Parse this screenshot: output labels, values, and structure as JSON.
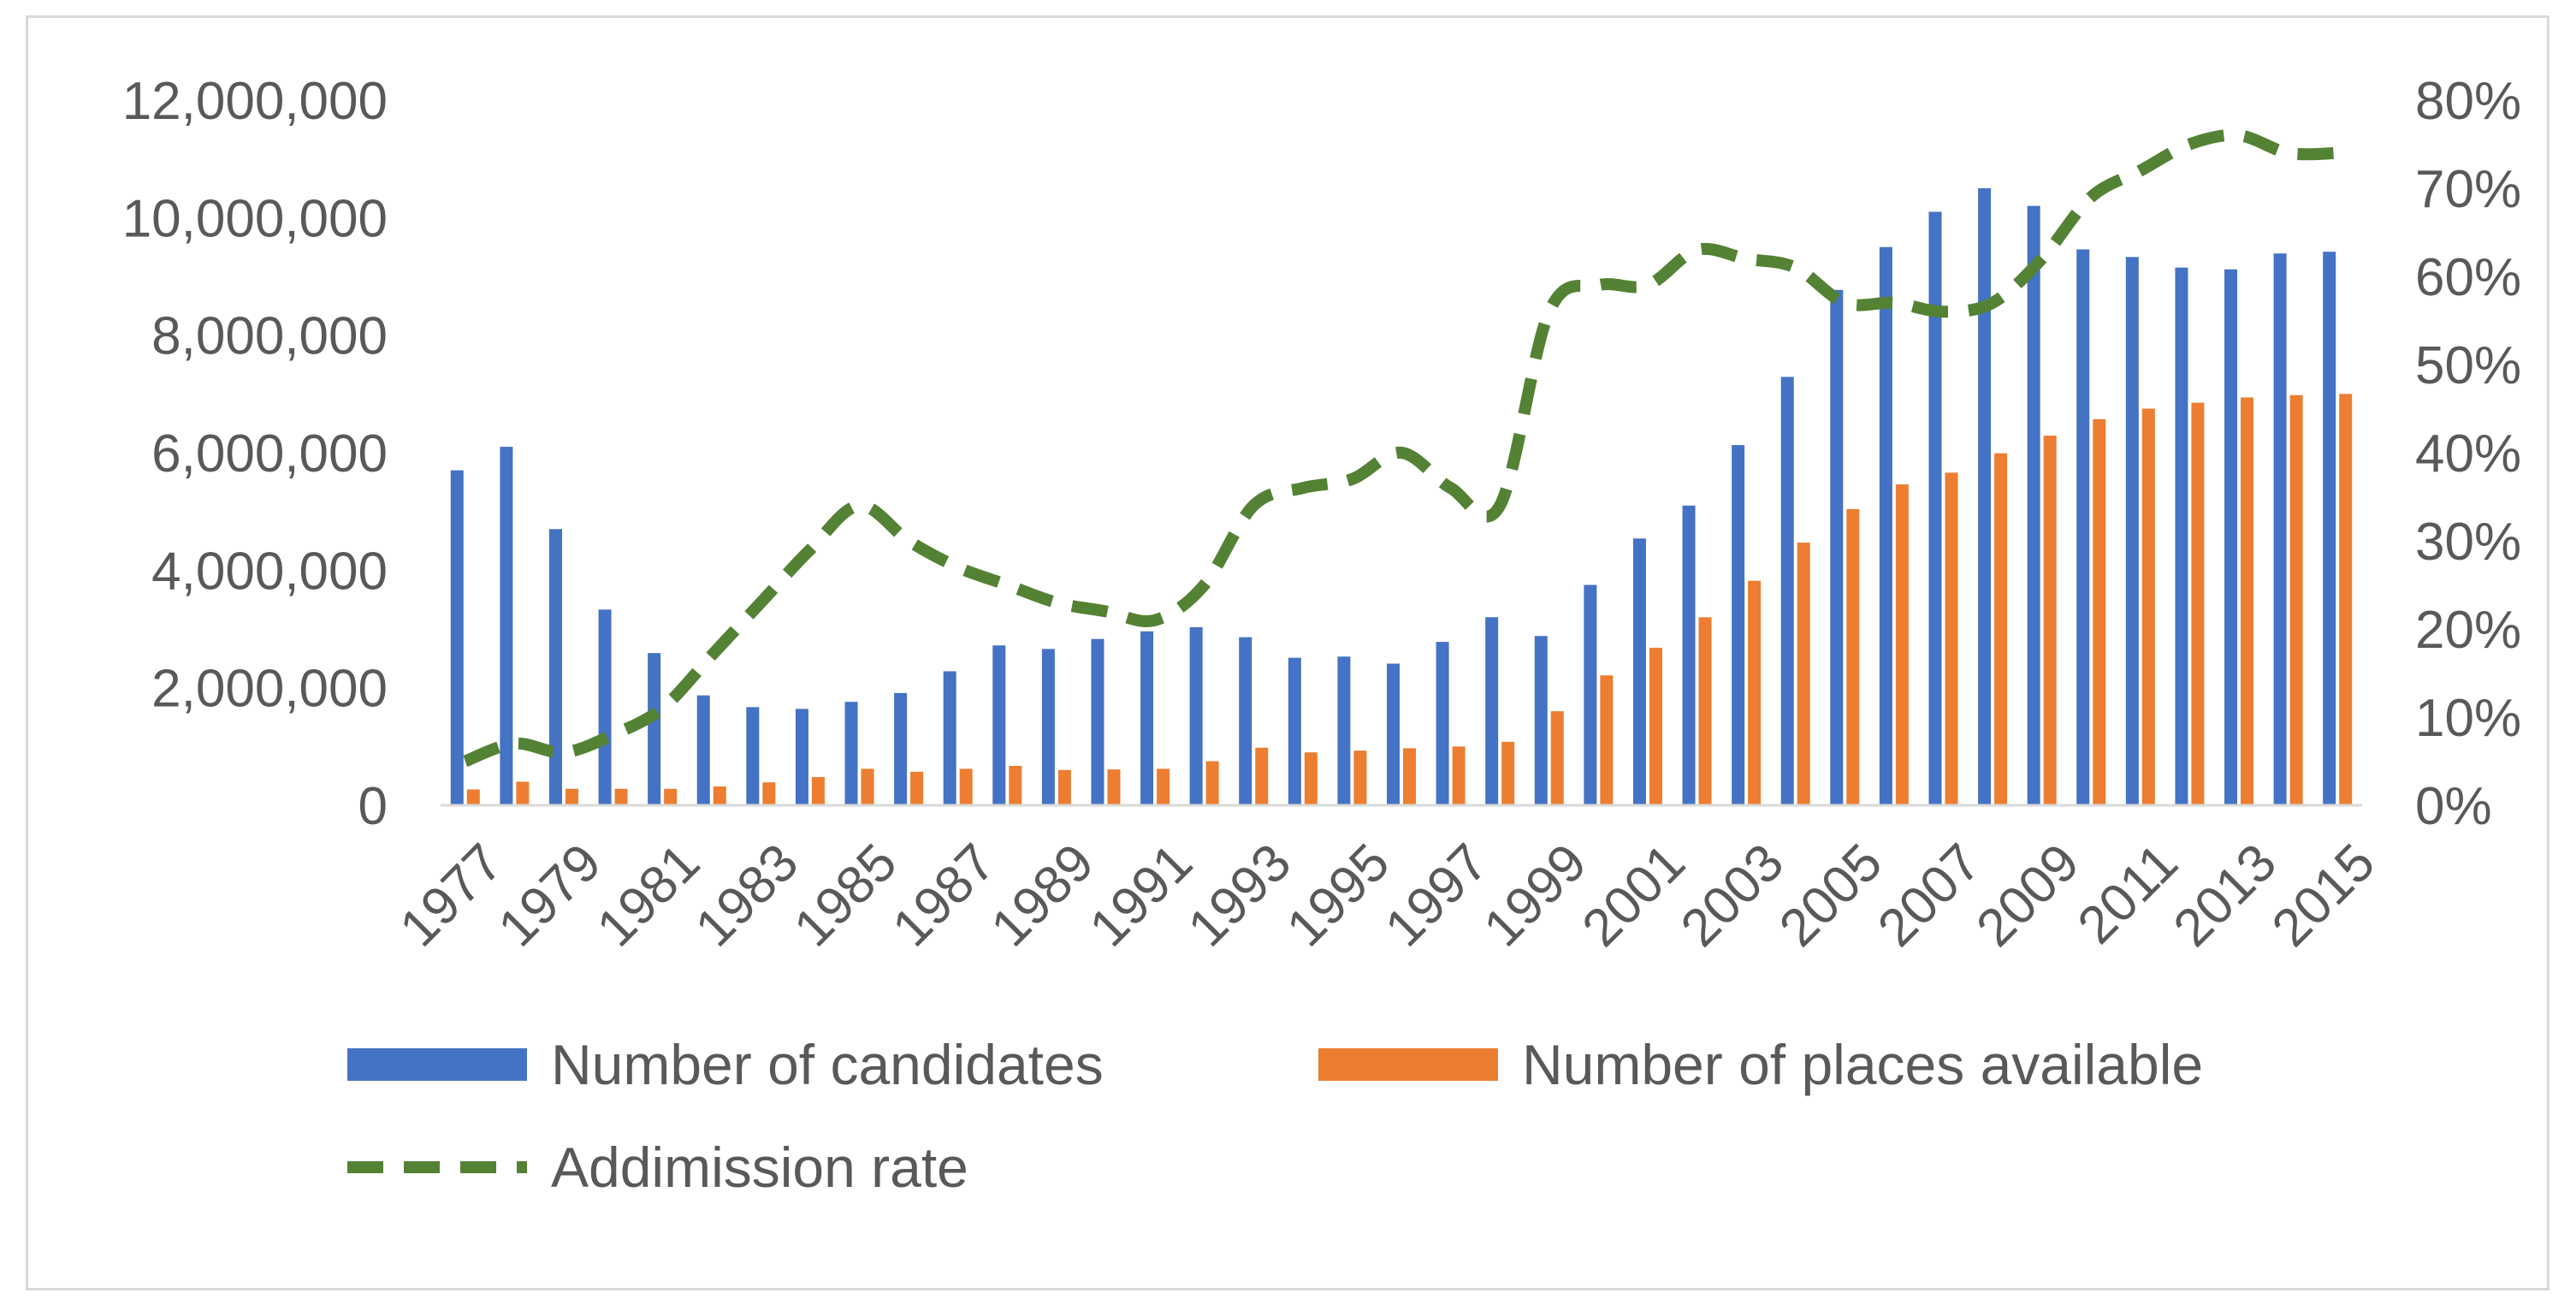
{
  "chart_data": {
    "type": "bar",
    "title": "",
    "xlabel": "",
    "ylabel": "",
    "categories": [
      1977,
      1978,
      1979,
      1980,
      1981,
      1982,
      1983,
      1984,
      1985,
      1986,
      1987,
      1988,
      1989,
      1990,
      1991,
      1992,
      1993,
      1994,
      1995,
      1996,
      1997,
      1998,
      1999,
      2000,
      2001,
      2002,
      2003,
      2004,
      2005,
      2006,
      2007,
      2008,
      2009,
      2010,
      2011,
      2012,
      2013,
      2014,
      2015
    ],
    "x_tick_labels": [
      "1977",
      "1979",
      "1981",
      "1983",
      "1985",
      "1987",
      "1989",
      "1991",
      "1993",
      "1995",
      "1997",
      "1999",
      "2001",
      "2003",
      "2005",
      "2007",
      "2009",
      "2011",
      "2013",
      "2015"
    ],
    "series": [
      {
        "name": "Number of candidates",
        "axis": "left",
        "kind": "bar",
        "color": "#4472c4",
        "values": [
          5700000,
          6100000,
          4700000,
          3330000,
          2590000,
          1870000,
          1670000,
          1640000,
          1760000,
          1910000,
          2280000,
          2720000,
          2660000,
          2830000,
          2960000,
          3030000,
          2860000,
          2510000,
          2530000,
          2410000,
          2780000,
          3200000,
          2880000,
          3750000,
          4540000,
          5100000,
          6130000,
          7290000,
          8770000,
          9500000,
          10100000,
          10500000,
          10200000,
          9460000,
          9330000,
          9150000,
          9120000,
          9390000,
          9420000
        ]
      },
      {
        "name": "Number of places available",
        "axis": "left",
        "kind": "bar",
        "color": "#ed7d31",
        "values": [
          270000,
          400000,
          280000,
          280000,
          280000,
          320000,
          390000,
          480000,
          620000,
          570000,
          620000,
          670000,
          600000,
          610000,
          620000,
          750000,
          980000,
          900000,
          930000,
          970000,
          1000000,
          1080000,
          1600000,
          2210000,
          2680000,
          3200000,
          3820000,
          4470000,
          5040000,
          5460000,
          5660000,
          5990000,
          6290000,
          6570000,
          6750000,
          6850000,
          6940000,
          6980000,
          7000000
        ]
      },
      {
        "name": "Addimission rate",
        "axis": "right",
        "kind": "line",
        "style": "dashed",
        "color": "#548235",
        "values": [
          0.05,
          0.07,
          0.06,
          0.08,
          0.11,
          0.17,
          0.23,
          0.29,
          0.34,
          0.3,
          0.27,
          0.25,
          0.23,
          0.22,
          0.21,
          0.25,
          0.34,
          0.36,
          0.37,
          0.4,
          0.36,
          0.34,
          0.56,
          0.59,
          0.59,
          0.63,
          0.62,
          0.61,
          0.57,
          0.57,
          0.56,
          0.57,
          0.62,
          0.69,
          0.72,
          0.75,
          0.76,
          0.74,
          0.74
        ]
      }
    ],
    "y_left": {
      "min": 0,
      "max": 12000000,
      "ticks": [
        "0",
        "2,000,000",
        "4,000,000",
        "6,000,000",
        "8,000,000",
        "10,000,000",
        "12,000,000"
      ],
      "tick_values": [
        0,
        2000000,
        4000000,
        6000000,
        8000000,
        10000000,
        12000000
      ]
    },
    "y_right": {
      "min": 0,
      "max": 0.8,
      "ticks": [
        "0%",
        "10%",
        "20%",
        "30%",
        "40%",
        "50%",
        "60%",
        "70%",
        "80%"
      ],
      "tick_values": [
        0,
        0.1,
        0.2,
        0.3,
        0.4,
        0.5,
        0.6,
        0.7,
        0.8
      ]
    },
    "grid": false,
    "legend_position": "bottom"
  }
}
